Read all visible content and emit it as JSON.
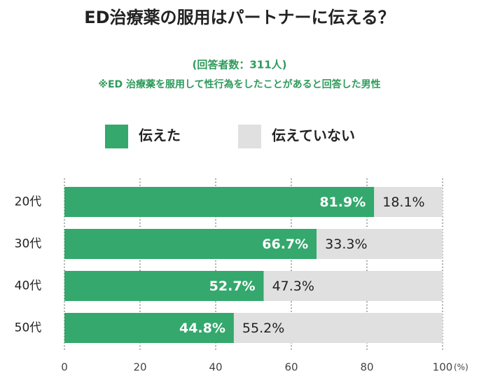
{
  "chart_data": {
    "type": "stacked-bar-horizontal",
    "title": "ED治療薬の服用はパートナーに伝える？",
    "subtitle": "(回答者数：311人)",
    "note": "※ED 治療薬を服用して性行為をしたことがあると回答した男性",
    "categories": [
      "20代",
      "30代",
      "40代",
      "50代"
    ],
    "series": [
      {
        "name": "伝えた",
        "color": "#34a86d",
        "values": [
          81.9,
          66.7,
          52.7,
          44.8
        ],
        "value_labels": [
          "81.9%",
          "66.7%",
          "52.7%",
          "44.8%"
        ]
      },
      {
        "name": "伝えていない",
        "color": "#e0e0e0",
        "values": [
          18.1,
          33.3,
          47.3,
          55.2
        ],
        "value_labels": [
          "18.1%",
          "33.3%",
          "47.3%",
          "55.2%"
        ]
      }
    ],
    "xlim": [
      0,
      100
    ],
    "xticks": [
      0,
      20,
      40,
      60,
      80,
      100
    ],
    "xlabel": "(%)",
    "grid": true
  }
}
